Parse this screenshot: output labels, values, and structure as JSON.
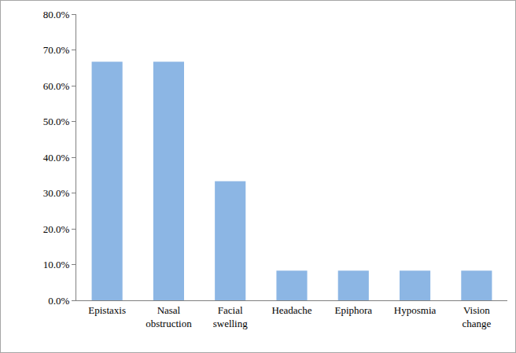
{
  "chart_data": {
    "type": "bar",
    "categories": [
      "Epistaxis",
      "Nasal obstruction",
      "Facial swelling",
      "Headache",
      "Epiphora",
      "Hyposmia",
      "Vision change"
    ],
    "values": [
      66.7,
      66.7,
      33.3,
      8.3,
      8.3,
      8.3,
      8.3
    ],
    "color": "#8cb6e4",
    "ylim": [
      0,
      80
    ],
    "yticks": [
      {
        "value": 0,
        "label": "0.0%"
      },
      {
        "value": 10,
        "label": "10.0%"
      },
      {
        "value": 20,
        "label": "20.0%"
      },
      {
        "value": 30,
        "label": "30.0%"
      },
      {
        "value": 40,
        "label": "40.0%"
      },
      {
        "value": 50,
        "label": "50.0%"
      },
      {
        "value": 60,
        "label": "60.0%"
      },
      {
        "value": 70,
        "label": "70.0%"
      },
      {
        "value": 80,
        "label": "80.0%"
      }
    ],
    "grid": false
  }
}
